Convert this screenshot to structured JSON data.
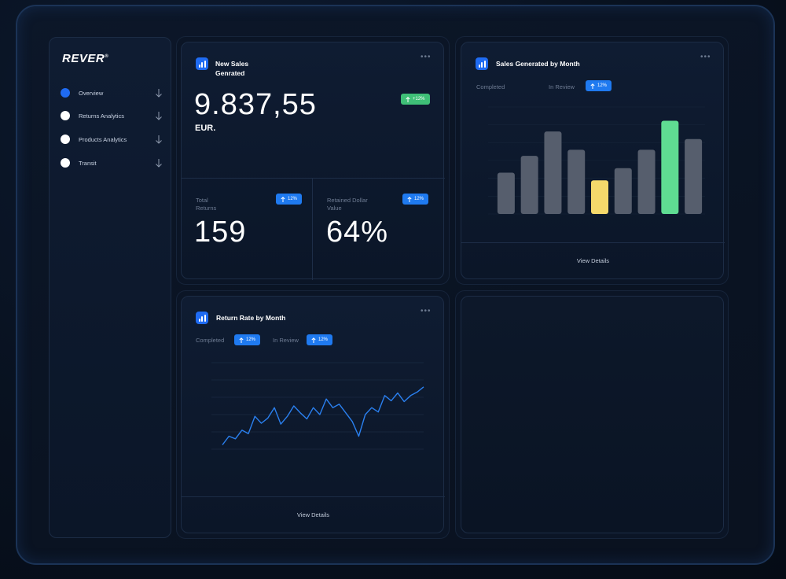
{
  "brand": {
    "logo": "REVER"
  },
  "sidebar": {
    "items": [
      {
        "label": "Overview",
        "active": true
      },
      {
        "label": "Returns Analytics",
        "active": false
      },
      {
        "label": "Products Analytics",
        "active": false
      },
      {
        "label": "Transit",
        "active": false
      }
    ]
  },
  "sales_card": {
    "title_line1": "New Sales",
    "title_line2": "Genrated",
    "value": "9.837,55",
    "currency": "EUR.",
    "badge": "+12%"
  },
  "returns_card": {
    "label_line1": "Total",
    "label_line2": "Returns",
    "value": "159",
    "badge": "12%"
  },
  "retained_card": {
    "label_line1": "Retained Dollar",
    "label_line2": "Value",
    "value": "64%",
    "badge": "12%"
  },
  "bar_card": {
    "title": "Sales Generated by Month",
    "legend_completed": "Completed",
    "legend_in_review": "In Review",
    "badge": "12%",
    "view_details": "View Details"
  },
  "line_card": {
    "title": "Return Rate by Month",
    "legend_completed": "Completed",
    "legend_in_review": "In Review",
    "badge_completed": "12%",
    "badge_in_review": "12%",
    "view_details": "View Details"
  },
  "colors": {
    "accent_blue": "#1f6bf2",
    "bar_default": "#565e6d",
    "bar_highlight_yellow": "#f5d96b",
    "bar_highlight_green": "#5fdc92",
    "line_blue": "#2a80f0"
  },
  "chart_data": [
    {
      "type": "bar",
      "title": "Sales Generated by Month",
      "values": [
        27,
        38,
        54,
        42,
        22,
        30,
        42,
        61,
        49
      ],
      "highlight": {
        "4": "yellow",
        "7": "green"
      },
      "ylim": [
        0,
        70
      ],
      "grid": true
    },
    {
      "type": "line",
      "title": "Return Rate by Month",
      "values": [
        5,
        15,
        12,
        22,
        18,
        38,
        30,
        36,
        48,
        29,
        38,
        50,
        42,
        35,
        48,
        40,
        58,
        48,
        52,
        42,
        32,
        15,
        40,
        48,
        43,
        62,
        56,
        65,
        55,
        62,
        66,
        72
      ],
      "ylim": [
        0,
        100
      ],
      "grid": true
    }
  ]
}
